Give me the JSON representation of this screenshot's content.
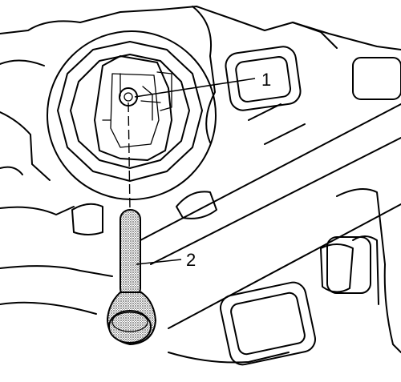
{
  "callouts": [
    {
      "label": "1"
    },
    {
      "label": "2"
    }
  ],
  "colors": {
    "line": "#000000",
    "background": "#ffffff",
    "stipple": "#6f6f6f"
  }
}
